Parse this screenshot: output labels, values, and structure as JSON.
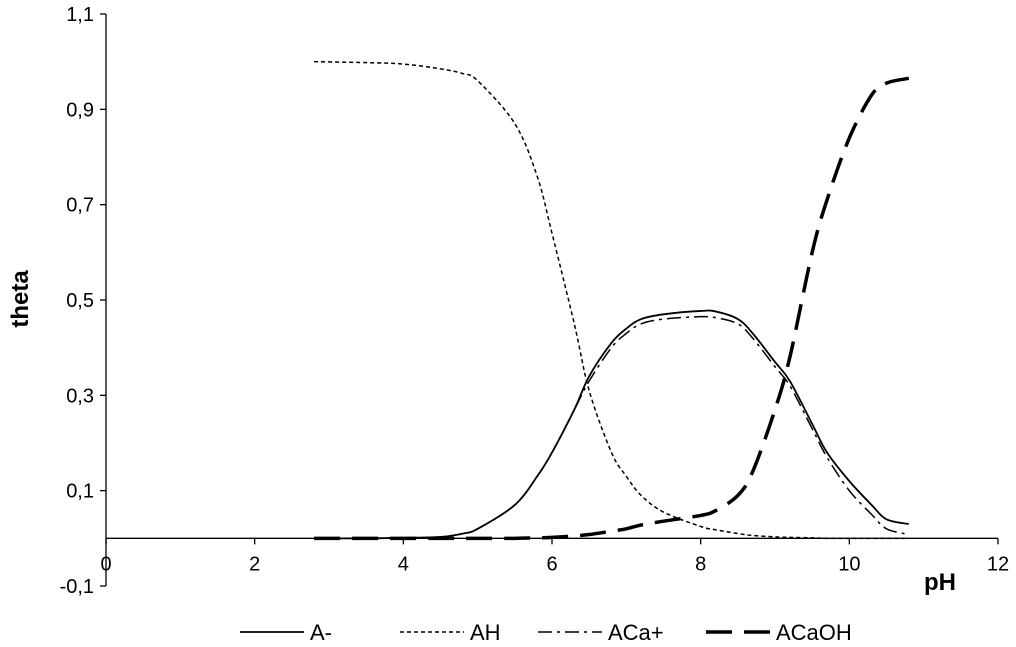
{
  "chart_data": {
    "type": "line",
    "xlabel": "pH",
    "ylabel": "theta",
    "xlim": [
      0,
      12
    ],
    "ylim": [
      -0.1,
      1.1
    ],
    "grid": false,
    "legend_position": "bottom",
    "x_ticks": [
      {
        "value": 0,
        "label": "0"
      },
      {
        "value": 2,
        "label": "2"
      },
      {
        "value": 4,
        "label": "4"
      },
      {
        "value": 6,
        "label": "6"
      },
      {
        "value": 8,
        "label": "8"
      },
      {
        "value": 10,
        "label": "10"
      },
      {
        "value": 12,
        "label": "12"
      }
    ],
    "y_ticks": [
      {
        "value": -0.1,
        "label": "-0,1"
      },
      {
        "value": 0.1,
        "label": "0,1"
      },
      {
        "value": 0.3,
        "label": "0,3"
      },
      {
        "value": 0.5,
        "label": "0,5"
      },
      {
        "value": 0.7,
        "label": "0,7"
      },
      {
        "value": 0.9,
        "label": "0,9"
      },
      {
        "value": 1.1,
        "label": "1,1"
      }
    ],
    "x": [
      2.8,
      3.5,
      4.0,
      4.5,
      4.8,
      5.0,
      5.5,
      5.8,
      6.0,
      6.3,
      6.5,
      6.8,
      7.0,
      7.2,
      7.5,
      8.0,
      8.2,
      8.5,
      8.7,
      9.0,
      9.2,
      9.5,
      9.7,
      10.0,
      10.3,
      10.5,
      10.8
    ],
    "series": [
      {
        "name": "A-",
        "style": "solid",
        "width": 1.8,
        "values": [
          0,
          0,
          0.001,
          0.003,
          0.01,
          0.02,
          0.07,
          0.13,
          0.18,
          0.27,
          0.34,
          0.41,
          0.44,
          0.46,
          0.47,
          0.477,
          0.476,
          0.46,
          0.43,
          0.37,
          0.33,
          0.24,
          0.18,
          0.12,
          0.07,
          0.04,
          0.03
        ]
      },
      {
        "name": "AH",
        "style": "dotted",
        "width": 1.5,
        "values": [
          1.0,
          0.998,
          0.995,
          0.985,
          0.975,
          0.96,
          0.87,
          0.76,
          0.64,
          0.45,
          0.31,
          0.18,
          0.13,
          0.09,
          0.055,
          0.025,
          0.018,
          0.01,
          0.006,
          0.003,
          0.002,
          0.001,
          0,
          0,
          0,
          0,
          0
        ]
      },
      {
        "name": "ACa+",
        "style": "dashdot",
        "width": 1.5,
        "values": [
          0,
          0,
          0.001,
          0.003,
          0.01,
          0.02,
          0.07,
          0.13,
          0.18,
          0.27,
          0.33,
          0.4,
          0.43,
          0.45,
          0.46,
          0.465,
          0.463,
          0.45,
          0.42,
          0.36,
          0.32,
          0.23,
          0.17,
          0.1,
          0.05,
          0.02,
          0.008
        ]
      },
      {
        "name": "ACaOH",
        "style": "dashed",
        "width": 3.5,
        "values": [
          0,
          0,
          0,
          0,
          0,
          0,
          0,
          0.001,
          0.002,
          0.005,
          0.008,
          0.015,
          0.02,
          0.028,
          0.036,
          0.048,
          0.058,
          0.09,
          0.14,
          0.27,
          0.38,
          0.6,
          0.71,
          0.84,
          0.93,
          0.955,
          0.965
        ]
      }
    ]
  }
}
